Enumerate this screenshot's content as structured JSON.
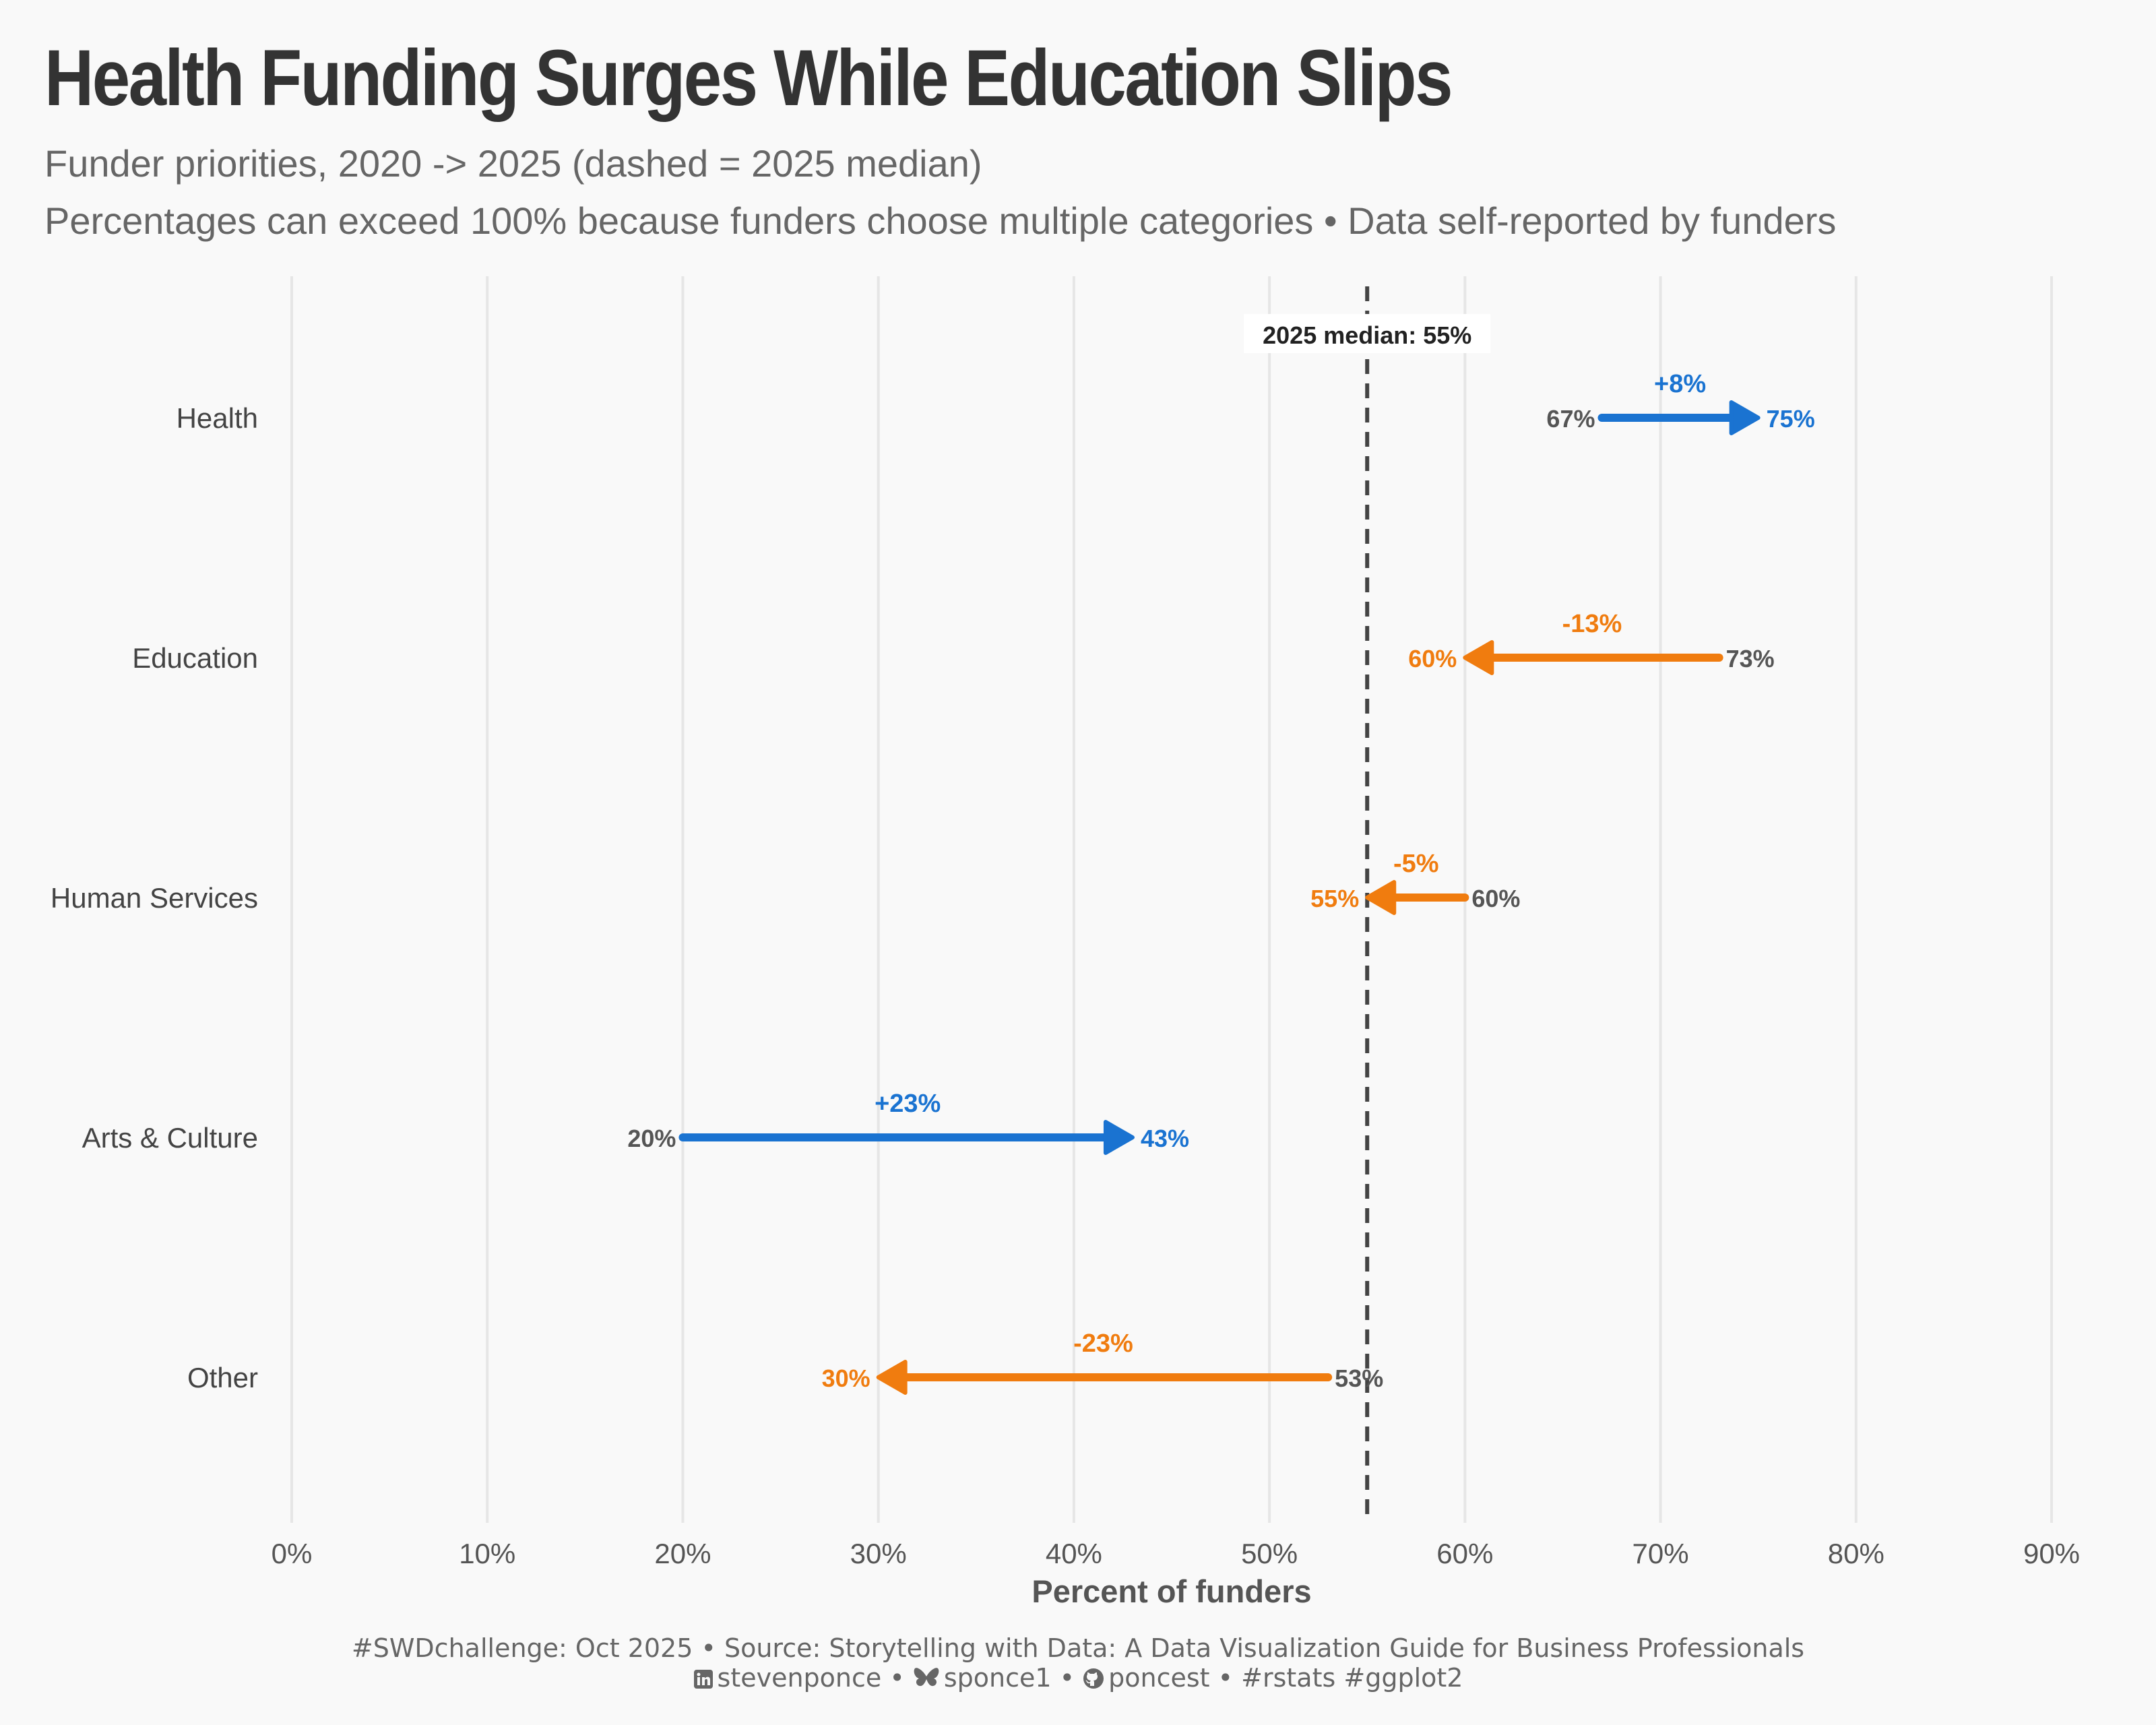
{
  "title": "Health Funding Surges While Education Slips",
  "subtitle_line1": "Funder priorities, 2020 -> 2025 (dashed = 2025 median)",
  "subtitle_line2": "Percentages can exceed 100% because funders choose multiple categories • Data self-reported by funders",
  "caption": {
    "line1": "#SWDchallenge: Oct 2025 • Source: Storytelling with Data: A Data Visualization Guide for Business Professionals",
    "linkedin": "stevenponce",
    "sep1": " • ",
    "bluesky": "sponce1",
    "sep2": " • ",
    "github": "poncest",
    "tags": " • #rstats #ggplot2",
    "icons": [
      "linkedin-icon",
      "bluesky-butterfly-icon",
      "github-icon"
    ]
  },
  "colors": {
    "increase": "#1a73d1",
    "decrease": "#f07c0f",
    "start_label": "#555555",
    "median_line": "#444444",
    "grid": "#e6e6e6",
    "background": "#f9f9f9"
  },
  "chart_data": {
    "type": "arrow-dumbbell",
    "xlabel": "Percent of funders",
    "ylabel": "",
    "xlim": [
      0,
      90
    ],
    "x_ticks": [
      0,
      10,
      20,
      30,
      40,
      50,
      60,
      70,
      80,
      90
    ],
    "x_tick_labels": [
      "0%",
      "10%",
      "20%",
      "30%",
      "40%",
      "50%",
      "60%",
      "70%",
      "80%",
      "90%"
    ],
    "grid": "vertical",
    "median_2025": 55,
    "median_label": "2025 median: 55%",
    "categories": [
      "Health",
      "Education",
      "Human Services",
      "Arts & Culture",
      "Other"
    ],
    "series": [
      {
        "year": 2020,
        "values": [
          67,
          73,
          60,
          20,
          53
        ]
      },
      {
        "year": 2025,
        "values": [
          75,
          60,
          55,
          43,
          30
        ]
      }
    ],
    "change_labels": [
      "+8%",
      "-13%",
      "-5%",
      "+23%",
      "-23%"
    ],
    "start_labels": [
      "67%",
      "73%",
      "60%",
      "20%",
      "53%"
    ],
    "end_labels": [
      "75%",
      "60%",
      "55%",
      "43%",
      "30%"
    ]
  }
}
